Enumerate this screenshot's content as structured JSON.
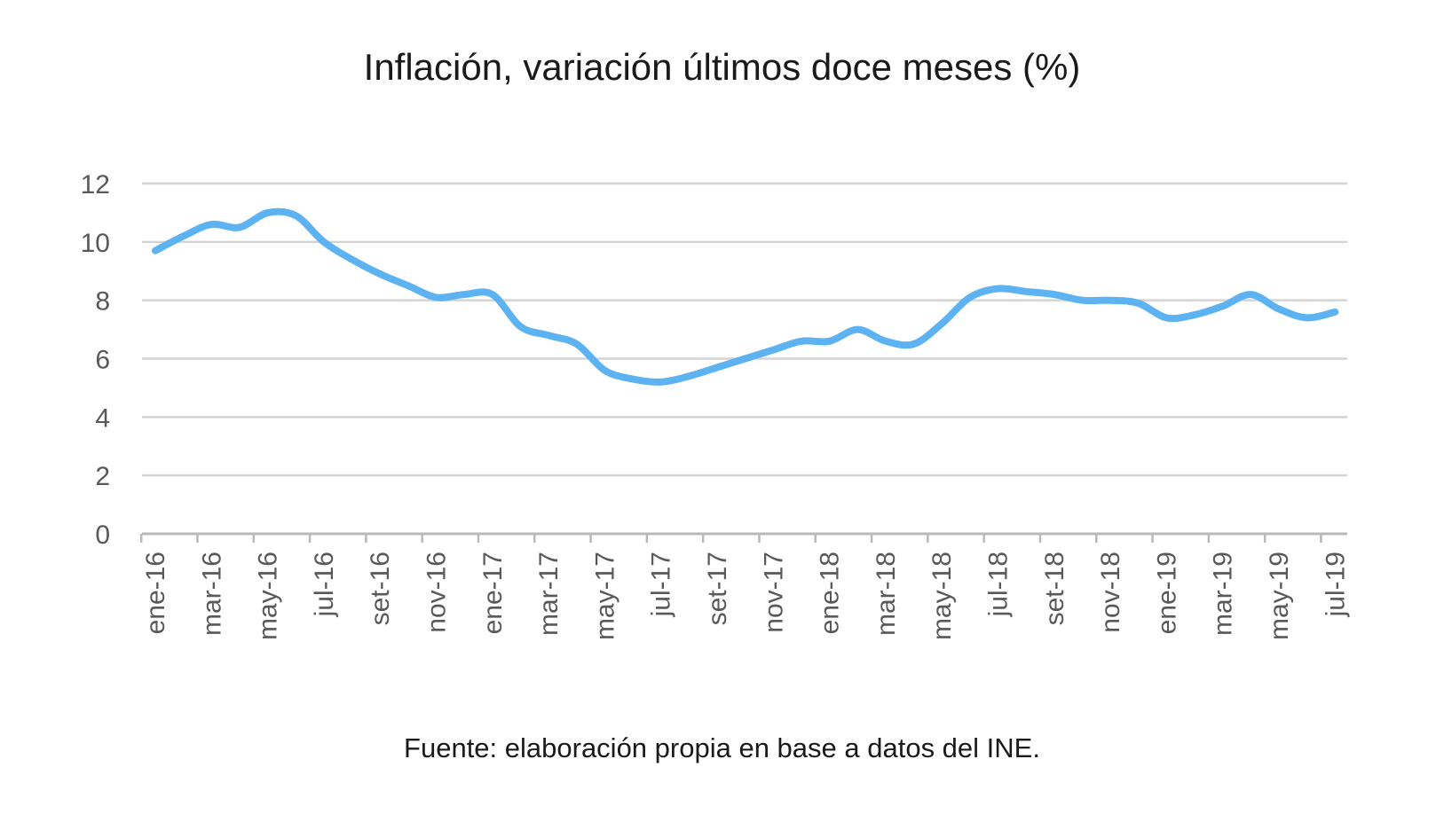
{
  "chart_data": {
    "type": "line",
    "title": "Inflación, variación últimos doce meses (%)",
    "source": "Fuente: elaboración propia en base a datos del INE.",
    "xlabel": "",
    "ylabel": "",
    "ylim": [
      0,
      12
    ],
    "yticks": [
      "0",
      "2",
      "4",
      "6",
      "8",
      "10",
      "12"
    ],
    "grid": true,
    "legend": "none",
    "x": [
      "ene-16",
      "feb-16",
      "mar-16",
      "abr-16",
      "may-16",
      "jun-16",
      "jul-16",
      "ago-16",
      "set-16",
      "oct-16",
      "nov-16",
      "dic-16",
      "ene-17",
      "feb-17",
      "mar-17",
      "abr-17",
      "may-17",
      "jun-17",
      "jul-17",
      "ago-17",
      "set-17",
      "oct-17",
      "nov-17",
      "dic-17",
      "ene-18",
      "feb-18",
      "mar-18",
      "abr-18",
      "may-18",
      "jun-18",
      "jul-18",
      "ago-18",
      "set-18",
      "oct-18",
      "nov-18",
      "dic-18",
      "ene-19",
      "feb-19",
      "mar-19",
      "abr-19",
      "may-19",
      "jun-19",
      "jul-19"
    ],
    "xtick_labels": [
      "ene-16",
      "mar-16",
      "may-16",
      "jul-16",
      "set-16",
      "nov-16",
      "ene-17",
      "mar-17",
      "may-17",
      "jul-17",
      "set-17",
      "nov-17",
      "ene-18",
      "mar-18",
      "may-18",
      "jul-18",
      "set-18",
      "nov-18",
      "ene-19",
      "mar-19",
      "may-19",
      "jul-19"
    ],
    "series": [
      {
        "values": [
          9.7,
          10.2,
          10.6,
          10.5,
          11.0,
          10.9,
          10.0,
          9.4,
          8.9,
          8.5,
          8.1,
          8.2,
          8.2,
          7.1,
          6.8,
          6.5,
          5.6,
          5.3,
          5.2,
          5.4,
          5.7,
          6.0,
          6.3,
          6.6,
          6.6,
          7.0,
          6.6,
          6.5,
          7.2,
          8.1,
          8.4,
          8.3,
          8.2,
          8.0,
          8.0,
          7.9,
          7.4,
          7.5,
          7.8,
          8.2,
          7.7,
          7.4,
          7.6
        ],
        "color": "#5db3f2"
      }
    ],
    "colors": {
      "gridline": "#d4d4d4",
      "axis": "#b9b9b9",
      "tick_text": "#595959",
      "text": "#1a1a1a"
    }
  }
}
